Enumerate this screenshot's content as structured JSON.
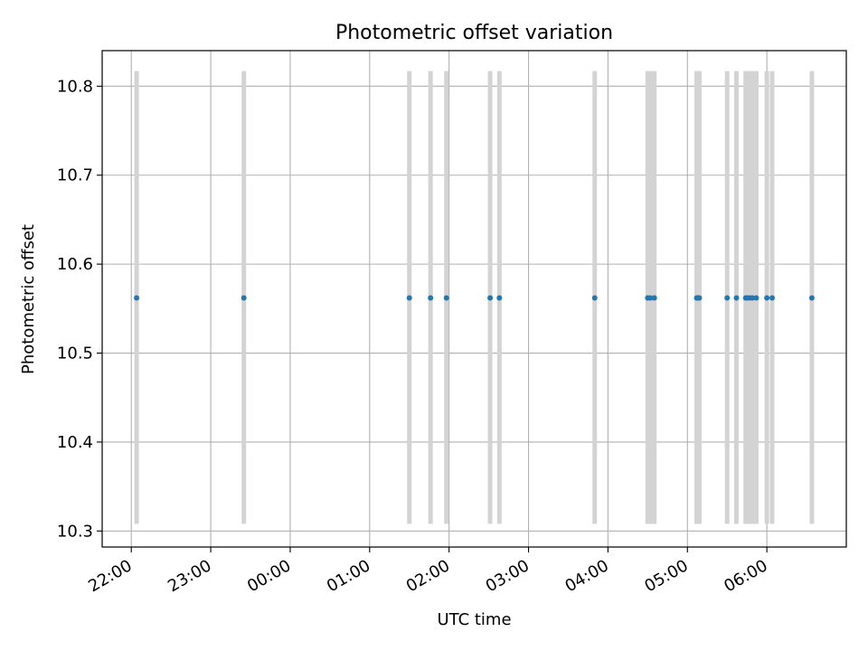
{
  "chart_data": {
    "type": "scatter",
    "title": "Photometric offset variation",
    "xlabel": "UTC time",
    "ylabel": "Photometric offset",
    "grid": true,
    "x_axis_type": "time",
    "x_domain": [
      "21:38",
      "07:00"
    ],
    "x_ticks": [
      "22:00",
      "23:00",
      "00:00",
      "01:00",
      "02:00",
      "03:00",
      "04:00",
      "05:00",
      "06:00"
    ],
    "ylim": [
      10.282,
      10.84
    ],
    "y_ticks": [
      10.3,
      10.4,
      10.5,
      10.6,
      10.7,
      10.8
    ],
    "y_tick_labels": [
      "10.3",
      "10.4",
      "10.5",
      "10.6",
      "10.7",
      "10.8"
    ],
    "colors": {
      "points": "#1f77b4",
      "error_bars": "#d3d3d3",
      "grid": "#b0b0b0"
    },
    "series": [
      {
        "x": [
          "22:04",
          "23:25",
          "01:30",
          "01:46",
          "01:58",
          "02:31",
          "02:38",
          "03:50",
          "04:30",
          "04:32",
          "04:35",
          "05:07",
          "05:08",
          "05:09",
          "05:30",
          "05:37",
          "05:44",
          "05:45",
          "05:47",
          "05:49",
          "05:52",
          "06:00",
          "06:04",
          "06:34"
        ],
        "y": [
          10.562,
          10.562,
          10.562,
          10.562,
          10.562,
          10.562,
          10.562,
          10.562,
          10.562,
          10.562,
          10.562,
          10.562,
          10.562,
          10.562,
          10.562,
          10.562,
          10.562,
          10.562,
          10.562,
          10.562,
          10.562,
          10.562,
          10.562,
          10.562
        ],
        "yerr_low": 10.308,
        "yerr_high": 10.817
      }
    ]
  }
}
